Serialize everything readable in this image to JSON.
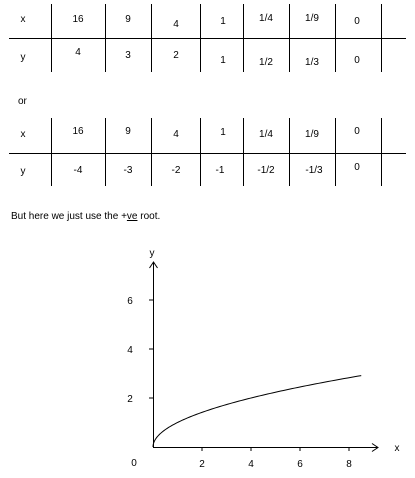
{
  "tables": [
    {
      "rows": [
        {
          "label": "x",
          "cells": [
            "16",
            "9",
            "4",
            "1",
            "1/4",
            "1/9",
            "0"
          ]
        },
        {
          "label": "y",
          "cells": [
            "4",
            "3",
            "2",
            "1",
            "1/2",
            "1/3",
            "0"
          ]
        }
      ]
    },
    {
      "rows": [
        {
          "label": "x",
          "cells": [
            "16",
            "9",
            "4",
            "1",
            "1/4",
            "1/9",
            "0"
          ]
        },
        {
          "label": "y",
          "cells": [
            "-4",
            "-3",
            "-2",
            "-1",
            "-1/2",
            "-1/3",
            "0"
          ]
        }
      ]
    }
  ],
  "or_text": "or",
  "caption": {
    "before": "But here we just use the +",
    "underlined": "ve",
    "after": " root."
  },
  "chart_data": {
    "type": "line",
    "function": "y = sqrt(x)",
    "title": "",
    "xlabel": "x",
    "ylabel": "y",
    "origin_label": "0",
    "xlim": [
      0,
      9
    ],
    "ylim": [
      0,
      8
    ],
    "xticks": [
      2,
      4,
      6,
      8
    ],
    "yticks": [
      2,
      4,
      6
    ],
    "xtick_labels": [
      "2",
      "4",
      "6",
      "8"
    ],
    "ytick_labels": [
      "2",
      "4",
      "6"
    ],
    "grid": false,
    "series": [
      {
        "x": [
          0,
          0.25,
          0.5,
          1,
          2,
          3,
          4,
          5,
          6,
          7,
          8,
          8.5
        ],
        "y": [
          0,
          0.5,
          0.71,
          1,
          1.41,
          1.73,
          2,
          2.24,
          2.45,
          2.65,
          2.83,
          2.92
        ]
      }
    ]
  }
}
